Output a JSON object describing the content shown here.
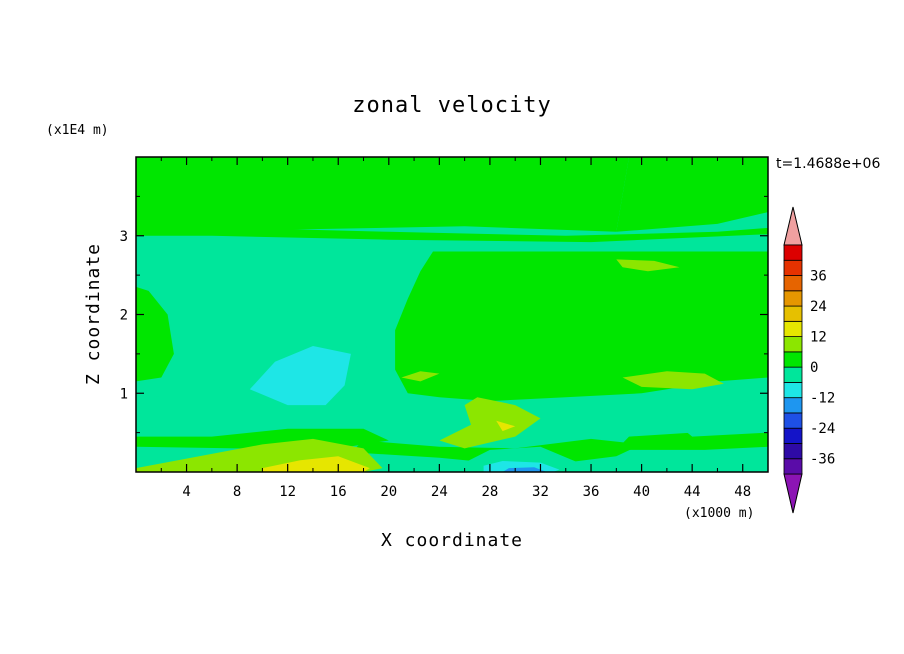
{
  "chart_data": {
    "type": "heatmap",
    "title": "zonal velocity",
    "xlabel": "X coordinate",
    "ylabel": "Z coordinate",
    "x_unit": "(x1000 m)",
    "y_unit": "(x1E4 m)",
    "time_label": "t=1.4688e+06",
    "xlim": [
      0,
      50
    ],
    "ylim": [
      0,
      4
    ],
    "x_ticks": [
      4,
      8,
      12,
      16,
      20,
      24,
      28,
      32,
      36,
      40,
      44,
      48
    ],
    "y_ticks": [
      1,
      2,
      3
    ],
    "colorbar": {
      "levels": [
        -42,
        -36,
        -30,
        -24,
        -18,
        -12,
        -6,
        0,
        6,
        12,
        18,
        24,
        30,
        36,
        42
      ],
      "colors": [
        "#5a0ca8",
        "#2e0aa6",
        "#1414c8",
        "#1e50e6",
        "#1e96f0",
        "#1ee6e6",
        "#00e69b",
        "#00e600",
        "#8ce600",
        "#e6e600",
        "#e6c000",
        "#e69600",
        "#e66400",
        "#e63200",
        "#dc0000"
      ],
      "under_color": "#8c14b4",
      "over_color": "#f0a0a0",
      "tick_labels": [
        "36",
        "24",
        "12",
        "0",
        "-12",
        "-24",
        "-36"
      ]
    },
    "regions": [
      {
        "level": 0,
        "points": [
          [
            0,
            3.05
          ],
          [
            13,
            3.08
          ],
          [
            26,
            3.12
          ],
          [
            38,
            3.05
          ],
          [
            39,
            4
          ],
          [
            0,
            4
          ]
        ]
      },
      {
        "level": 0,
        "points": [
          [
            39,
            4
          ],
          [
            38,
            3.05
          ],
          [
            46,
            3.15
          ],
          [
            50,
            3.3
          ],
          [
            50,
            4
          ]
        ]
      },
      {
        "level": 0,
        "points": [
          [
            0,
            3.15
          ],
          [
            8,
            3.1
          ],
          [
            20,
            3.05
          ],
          [
            34,
            3.0
          ],
          [
            46,
            3.05
          ],
          [
            50,
            3.1
          ],
          [
            50,
            3.02
          ],
          [
            36,
            2.92
          ],
          [
            20,
            2.95
          ],
          [
            6,
            3.0
          ],
          [
            0,
            3.0
          ]
        ]
      },
      {
        "level": 0,
        "points": [
          [
            23.5,
            2.8
          ],
          [
            50,
            2.8
          ],
          [
            50,
            1.2
          ],
          [
            46,
            1.15
          ],
          [
            40,
            1.0
          ],
          [
            34,
            0.95
          ],
          [
            28,
            0.9
          ],
          [
            24,
            0.95
          ],
          [
            21.5,
            1.0
          ],
          [
            20.5,
            1.3
          ],
          [
            20.5,
            1.8
          ],
          [
            21.5,
            2.2
          ],
          [
            22.5,
            2.55
          ]
        ]
      },
      {
        "level": 0,
        "points": [
          [
            0,
            1.15
          ],
          [
            2,
            1.2
          ],
          [
            3,
            1.5
          ],
          [
            2.5,
            2.0
          ],
          [
            1,
            2.3
          ],
          [
            0,
            2.35
          ]
        ]
      },
      {
        "level": 0,
        "points": [
          [
            38,
            0.28
          ],
          [
            45,
            0.28
          ],
          [
            50,
            0.32
          ],
          [
            50,
            0.6
          ],
          [
            44,
            0.5
          ],
          [
            39,
            0.45
          ]
        ]
      },
      {
        "level": 0,
        "points": [
          [
            17,
            0.25
          ],
          [
            24,
            0.18
          ],
          [
            28,
            0.12
          ],
          [
            34,
            0.12
          ],
          [
            38,
            0.2
          ],
          [
            40,
            0.35
          ],
          [
            36,
            0.42
          ],
          [
            30,
            0.3
          ],
          [
            24,
            0.32
          ],
          [
            18,
            0.4
          ]
        ]
      },
      {
        "level": 0,
        "points": [
          [
            0,
            0.45
          ],
          [
            6,
            0.45
          ],
          [
            12,
            0.55
          ],
          [
            18,
            0.55
          ],
          [
            20,
            0.4
          ],
          [
            16,
            0.3
          ],
          [
            8,
            0.3
          ],
          [
            0,
            0.32
          ]
        ]
      },
      {
        "level": 6,
        "points": [
          [
            0,
            0.05
          ],
          [
            5,
            0.2
          ],
          [
            10,
            0.35
          ],
          [
            14,
            0.42
          ],
          [
            18,
            0.3
          ],
          [
            19.5,
            0.05
          ],
          [
            18,
            0
          ],
          [
            0,
            0
          ]
        ]
      },
      {
        "level": 6,
        "points": [
          [
            27,
            0.95
          ],
          [
            30,
            0.85
          ],
          [
            32,
            0.68
          ],
          [
            30,
            0.45
          ],
          [
            26,
            0.3
          ],
          [
            24,
            0.4
          ],
          [
            26.5,
            0.6
          ],
          [
            26,
            0.85
          ]
        ]
      },
      {
        "level": 6,
        "points": [
          [
            38.5,
            1.2
          ],
          [
            42,
            1.28
          ],
          [
            45,
            1.25
          ],
          [
            46.5,
            1.12
          ],
          [
            44,
            1.05
          ],
          [
            40,
            1.08
          ]
        ]
      },
      {
        "level": 6,
        "points": [
          [
            21,
            1.2
          ],
          [
            22.5,
            1.28
          ],
          [
            24,
            1.25
          ],
          [
            22.5,
            1.15
          ]
        ]
      },
      {
        "level": 6,
        "points": [
          [
            38,
            2.7
          ],
          [
            41,
            2.68
          ],
          [
            43,
            2.6
          ],
          [
            40.5,
            2.55
          ],
          [
            38.5,
            2.6
          ]
        ]
      },
      {
        "level": 12,
        "points": [
          [
            10,
            0.05
          ],
          [
            13,
            0.15
          ],
          [
            16,
            0.2
          ],
          [
            18.5,
            0.05
          ],
          [
            18,
            0
          ],
          [
            10,
            0
          ]
        ]
      },
      {
        "level": 12,
        "points": [
          [
            28.5,
            0.65
          ],
          [
            30,
            0.58
          ],
          [
            29,
            0.52
          ]
        ]
      },
      {
        "level": -6,
        "points": [
          [
            5,
            1.6
          ],
          [
            8,
            2.1
          ],
          [
            11,
            2.05
          ],
          [
            15,
            2.02
          ],
          [
            18,
            1.8
          ],
          [
            18.5,
            1.3
          ],
          [
            17.5,
            0.85
          ],
          [
            16,
            0.6
          ],
          [
            12,
            0.6
          ],
          [
            8,
            0.8
          ],
          [
            6,
            1.2
          ]
        ]
      },
      {
        "level": -6,
        "points": [
          [
            0,
            0.6
          ],
          [
            2,
            0.55
          ],
          [
            3,
            0.75
          ],
          [
            2,
            0.95
          ],
          [
            0,
            1.0
          ]
        ]
      },
      {
        "level": -6,
        "points": [
          [
            26,
            0.12
          ],
          [
            28,
            0.28
          ],
          [
            32,
            0.32
          ],
          [
            35,
            0.12
          ],
          [
            36,
            0
          ],
          [
            26,
            0
          ]
        ]
      },
      {
        "level": -6,
        "points": [
          [
            41,
            0.85
          ],
          [
            46,
            0.82
          ],
          [
            50,
            0.95
          ],
          [
            50,
            0.5
          ],
          [
            44,
            0.45
          ]
        ]
      },
      {
        "level": -12,
        "points": [
          [
            9,
            1.05
          ],
          [
            11,
            1.4
          ],
          [
            14,
            1.6
          ],
          [
            17,
            1.5
          ],
          [
            16.5,
            1.1
          ],
          [
            15,
            0.85
          ],
          [
            12,
            0.85
          ]
        ]
      },
      {
        "level": -12,
        "points": [
          [
            27.5,
            0.08
          ],
          [
            29,
            0.14
          ],
          [
            32,
            0.12
          ],
          [
            33.5,
            0.03
          ],
          [
            33,
            0
          ],
          [
            27.5,
            0
          ]
        ]
      },
      {
        "level": -18,
        "points": [
          [
            29,
            0
          ],
          [
            29.5,
            0.05
          ],
          [
            31.5,
            0.06
          ],
          [
            32.5,
            0
          ]
        ]
      }
    ]
  }
}
